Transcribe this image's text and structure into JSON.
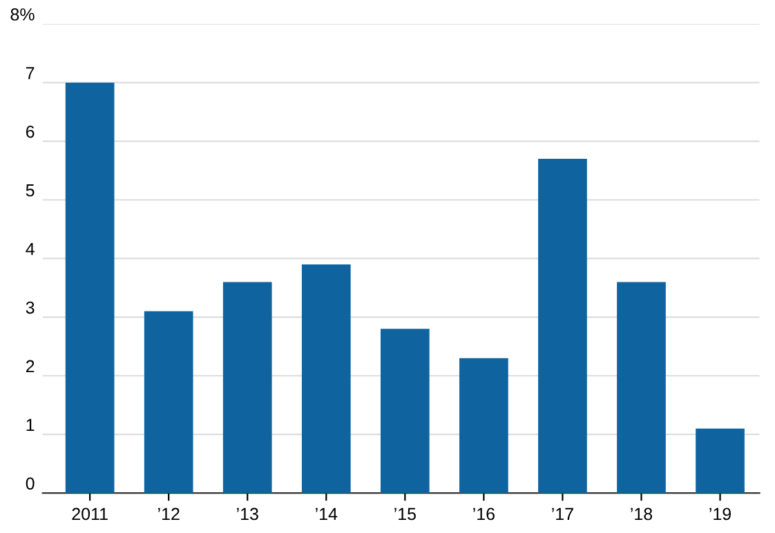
{
  "chart_data": {
    "type": "bar",
    "categories": [
      "2011",
      "’12",
      "’13",
      "’14",
      "’15",
      "’16",
      "’17",
      "’18",
      "’19"
    ],
    "values": [
      7.0,
      3.1,
      3.6,
      3.9,
      2.8,
      2.3,
      5.7,
      3.6,
      1.1
    ],
    "color": "#0f64a0",
    "ylim": [
      0,
      8
    ],
    "yticks": [
      0,
      1,
      2,
      3,
      4,
      5,
      6,
      7,
      {
        "value": 8,
        "label": "8%"
      }
    ],
    "grid": "y"
  }
}
